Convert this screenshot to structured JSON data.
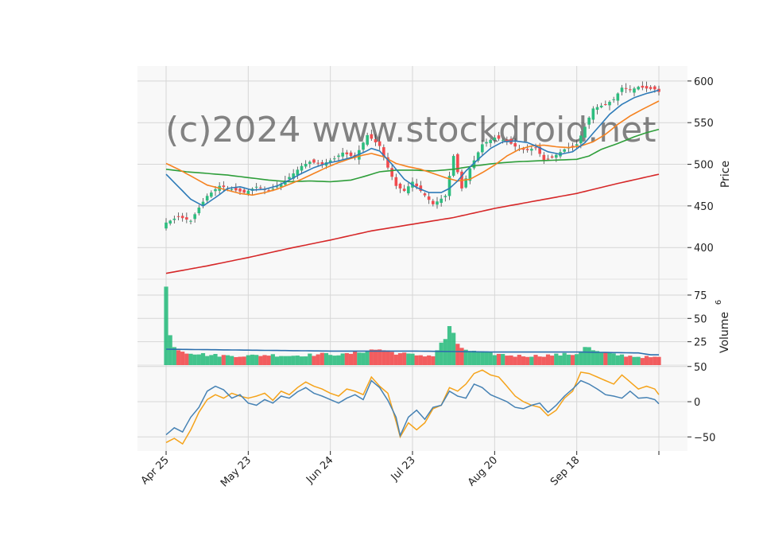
{
  "chart_data": {
    "type": "candlestick",
    "watermark": "(c)2024 www.stockdroid.net",
    "colors": {
      "up": "#2dbd7f",
      "down": "#f14b4e",
      "ma_fast": "#2e7bb8",
      "ma_mid": "#f58220",
      "ma_slow": "#2e9e3a",
      "ma_long": "#d62728",
      "volume_avg": "#2c6fad",
      "osc_a": "#4682b4",
      "osc_b": "#f5a31a",
      "grid": "#d6d6d6",
      "panel_bg": "#f8f8f8"
    },
    "x_ticks": [
      {
        "label": "Apr 25",
        "index": 0
      },
      {
        "label": "May 23",
        "index": 20
      },
      {
        "label": "Jun 24",
        "index": 40
      },
      {
        "label": "Jul 23",
        "index": 60
      },
      {
        "label": "Aug 20",
        "index": 80
      },
      {
        "label": "Sep 18",
        "index": 100
      },
      {
        "label": "",
        "index": 120
      }
    ],
    "price_axis": {
      "label": "Price",
      "ticks": [
        400,
        450,
        500,
        550,
        600
      ],
      "ylim": [
        362,
        618
      ]
    },
    "volume_axis": {
      "label": "Volume",
      "exponent": "6",
      "ticks": [
        25,
        50,
        75
      ],
      "ylim": [
        0,
        92
      ]
    },
    "osc_axis": {
      "ticks": [
        -50,
        0,
        50
      ],
      "ylim": [
        -70,
        52
      ]
    },
    "price_anchors": [
      [
        0,
        430
      ],
      [
        3,
        437
      ],
      [
        6,
        432
      ],
      [
        8,
        448
      ],
      [
        10,
        462
      ],
      [
        13,
        474
      ],
      [
        16,
        470
      ],
      [
        19,
        466
      ],
      [
        22,
        473
      ],
      [
        25,
        468
      ],
      [
        28,
        476
      ],
      [
        31,
        489
      ],
      [
        33,
        498
      ],
      [
        35,
        503
      ],
      [
        38,
        500
      ],
      [
        41,
        507
      ],
      [
        43,
        514
      ],
      [
        46,
        508
      ],
      [
        49,
        535
      ],
      [
        52,
        522
      ],
      [
        54,
        496
      ],
      [
        56,
        474
      ],
      [
        58,
        468
      ],
      [
        60,
        479
      ],
      [
        62,
        468
      ],
      [
        65,
        452
      ],
      [
        68,
        462
      ],
      [
        70,
        510
      ],
      [
        72,
        471
      ],
      [
        74,
        495
      ],
      [
        77,
        524
      ],
      [
        80,
        532
      ],
      [
        83,
        528
      ],
      [
        86,
        518
      ],
      [
        88,
        517
      ],
      [
        90,
        520
      ],
      [
        92,
        505
      ],
      [
        94,
        508
      ],
      [
        97,
        518
      ],
      [
        100,
        524
      ],
      [
        102,
        545
      ],
      [
        104,
        567
      ],
      [
        107,
        572
      ],
      [
        109,
        578
      ],
      [
        111,
        592
      ],
      [
        113,
        589
      ],
      [
        115,
        593
      ],
      [
        117,
        591
      ],
      [
        119,
        590
      ],
      [
        120,
        587
      ]
    ],
    "volume_anchors": [
      [
        0,
        84
      ],
      [
        1,
        32
      ],
      [
        2,
        22
      ],
      [
        3,
        17
      ],
      [
        5,
        14
      ],
      [
        10,
        11
      ],
      [
        15,
        10
      ],
      [
        20,
        10
      ],
      [
        25,
        11
      ],
      [
        30,
        10
      ],
      [
        35,
        11
      ],
      [
        40,
        12
      ],
      [
        43,
        11
      ],
      [
        48,
        15
      ],
      [
        52,
        17
      ],
      [
        56,
        13
      ],
      [
        60,
        11
      ],
      [
        65,
        10
      ],
      [
        68,
        28
      ],
      [
        69,
        43
      ],
      [
        71,
        20
      ],
      [
        75,
        14
      ],
      [
        80,
        12
      ],
      [
        85,
        10
      ],
      [
        90,
        10
      ],
      [
        95,
        11
      ],
      [
        100,
        12
      ],
      [
        102,
        20
      ],
      [
        105,
        14
      ],
      [
        110,
        11
      ],
      [
        115,
        9
      ],
      [
        120,
        8
      ]
    ],
    "volume_avg_anchors": [
      [
        0,
        17
      ],
      [
        20,
        16
      ],
      [
        40,
        15
      ],
      [
        60,
        15
      ],
      [
        80,
        14
      ],
      [
        100,
        14
      ],
      [
        115,
        13
      ],
      [
        118,
        11
      ],
      [
        120,
        11
      ]
    ],
    "ma_fast_anchors": [
      [
        0,
        488
      ],
      [
        3,
        473
      ],
      [
        6,
        458
      ],
      [
        9,
        450
      ],
      [
        12,
        460
      ],
      [
        15,
        471
      ],
      [
        18,
        473
      ],
      [
        21,
        469
      ],
      [
        24,
        470
      ],
      [
        27,
        474
      ],
      [
        30,
        481
      ],
      [
        33,
        489
      ],
      [
        36,
        496
      ],
      [
        39,
        501
      ],
      [
        42,
        504
      ],
      [
        45,
        508
      ],
      [
        48,
        514
      ],
      [
        50,
        519
      ],
      [
        52,
        516
      ],
      [
        55,
        500
      ],
      [
        58,
        482
      ],
      [
        61,
        472
      ],
      [
        64,
        466
      ],
      [
        67,
        466
      ],
      [
        69,
        471
      ],
      [
        71,
        480
      ],
      [
        73,
        492
      ],
      [
        76,
        506
      ],
      [
        79,
        519
      ],
      [
        82,
        527
      ],
      [
        85,
        528
      ],
      [
        88,
        526
      ],
      [
        90,
        522
      ],
      [
        93,
        515
      ],
      [
        96,
        512
      ],
      [
        99,
        515
      ],
      [
        102,
        526
      ],
      [
        105,
        543
      ],
      [
        108,
        560
      ],
      [
        111,
        572
      ],
      [
        114,
        580
      ],
      [
        117,
        585
      ],
      [
        120,
        589
      ]
    ],
    "ma_mid_anchors": [
      [
        0,
        501
      ],
      [
        3,
        494
      ],
      [
        6,
        486
      ],
      [
        10,
        475
      ],
      [
        14,
        470
      ],
      [
        18,
        465
      ],
      [
        21,
        463
      ],
      [
        24,
        466
      ],
      [
        27,
        470
      ],
      [
        30,
        476
      ],
      [
        33,
        482
      ],
      [
        36,
        489
      ],
      [
        39,
        496
      ],
      [
        42,
        502
      ],
      [
        45,
        507
      ],
      [
        48,
        511
      ],
      [
        50,
        513
      ],
      [
        53,
        509
      ],
      [
        56,
        501
      ],
      [
        59,
        497
      ],
      [
        62,
        494
      ],
      [
        65,
        489
      ],
      [
        68,
        484
      ],
      [
        71,
        480
      ],
      [
        74,
        482
      ],
      [
        77,
        490
      ],
      [
        80,
        499
      ],
      [
        83,
        510
      ],
      [
        86,
        518
      ],
      [
        89,
        522
      ],
      [
        92,
        523
      ],
      [
        95,
        521
      ],
      [
        98,
        520
      ],
      [
        101,
        522
      ],
      [
        104,
        527
      ],
      [
        107,
        536
      ],
      [
        110,
        548
      ],
      [
        113,
        558
      ],
      [
        116,
        566
      ],
      [
        118,
        571
      ],
      [
        120,
        576
      ]
    ],
    "ma_slow_anchors": [
      [
        0,
        494
      ],
      [
        5,
        491
      ],
      [
        10,
        489
      ],
      [
        15,
        487
      ],
      [
        20,
        484
      ],
      [
        25,
        481
      ],
      [
        30,
        479
      ],
      [
        35,
        480
      ],
      [
        40,
        479
      ],
      [
        45,
        481
      ],
      [
        48,
        485
      ],
      [
        52,
        491
      ],
      [
        56,
        493
      ],
      [
        60,
        493
      ],
      [
        65,
        492
      ],
      [
        70,
        494
      ],
      [
        75,
        498
      ],
      [
        80,
        501
      ],
      [
        85,
        503
      ],
      [
        90,
        504
      ],
      [
        95,
        505
      ],
      [
        100,
        506
      ],
      [
        103,
        510
      ],
      [
        106,
        518
      ],
      [
        110,
        525
      ],
      [
        114,
        533
      ],
      [
        117,
        538
      ],
      [
        120,
        542
      ]
    ],
    "ma_long_anchors": [
      [
        0,
        369
      ],
      [
        10,
        378
      ],
      [
        20,
        388
      ],
      [
        30,
        399
      ],
      [
        40,
        409
      ],
      [
        50,
        420
      ],
      [
        60,
        428
      ],
      [
        70,
        436
      ],
      [
        80,
        447
      ],
      [
        90,
        456
      ],
      [
        100,
        465
      ],
      [
        110,
        477
      ],
      [
        120,
        488
      ]
    ],
    "osc_a_anchors": [
      [
        0,
        -47
      ],
      [
        2,
        -37
      ],
      [
        4,
        -43
      ],
      [
        6,
        -22
      ],
      [
        8,
        -8
      ],
      [
        10,
        15
      ],
      [
        12,
        22
      ],
      [
        14,
        17
      ],
      [
        16,
        5
      ],
      [
        18,
        10
      ],
      [
        20,
        -2
      ],
      [
        22,
        -5
      ],
      [
        24,
        3
      ],
      [
        26,
        -2
      ],
      [
        28,
        8
      ],
      [
        30,
        5
      ],
      [
        32,
        14
      ],
      [
        34,
        20
      ],
      [
        36,
        12
      ],
      [
        38,
        8
      ],
      [
        40,
        3
      ],
      [
        42,
        -2
      ],
      [
        44,
        5
      ],
      [
        46,
        10
      ],
      [
        48,
        3
      ],
      [
        50,
        30
      ],
      [
        52,
        20
      ],
      [
        54,
        2
      ],
      [
        56,
        -22
      ],
      [
        57,
        -48
      ],
      [
        59,
        -22
      ],
      [
        61,
        -12
      ],
      [
        63,
        -25
      ],
      [
        65,
        -8
      ],
      [
        67,
        -5
      ],
      [
        69,
        15
      ],
      [
        71,
        8
      ],
      [
        73,
        5
      ],
      [
        75,
        25
      ],
      [
        77,
        20
      ],
      [
        79,
        10
      ],
      [
        81,
        5
      ],
      [
        83,
        0
      ],
      [
        85,
        -8
      ],
      [
        87,
        -10
      ],
      [
        89,
        -5
      ],
      [
        91,
        -2
      ],
      [
        93,
        -15
      ],
      [
        95,
        -5
      ],
      [
        97,
        8
      ],
      [
        99,
        18
      ],
      [
        101,
        30
      ],
      [
        103,
        25
      ],
      [
        105,
        18
      ],
      [
        107,
        10
      ],
      [
        109,
        8
      ],
      [
        111,
        5
      ],
      [
        113,
        15
      ],
      [
        115,
        5
      ],
      [
        117,
        6
      ],
      [
        119,
        3
      ],
      [
        120,
        -3
      ]
    ],
    "osc_b_anchors": [
      [
        0,
        -58
      ],
      [
        2,
        -52
      ],
      [
        4,
        -60
      ],
      [
        6,
        -40
      ],
      [
        8,
        -15
      ],
      [
        10,
        3
      ],
      [
        12,
        10
      ],
      [
        14,
        5
      ],
      [
        16,
        12
      ],
      [
        18,
        8
      ],
      [
        20,
        5
      ],
      [
        22,
        8
      ],
      [
        24,
        12
      ],
      [
        26,
        2
      ],
      [
        28,
        15
      ],
      [
        30,
        10
      ],
      [
        32,
        20
      ],
      [
        34,
        28
      ],
      [
        36,
        22
      ],
      [
        38,
        18
      ],
      [
        40,
        12
      ],
      [
        42,
        8
      ],
      [
        44,
        18
      ],
      [
        46,
        15
      ],
      [
        48,
        10
      ],
      [
        50,
        35
      ],
      [
        52,
        22
      ],
      [
        54,
        12
      ],
      [
        56,
        -28
      ],
      [
        57,
        -50
      ],
      [
        59,
        -30
      ],
      [
        61,
        -40
      ],
      [
        63,
        -30
      ],
      [
        65,
        -10
      ],
      [
        67,
        -5
      ],
      [
        69,
        20
      ],
      [
        71,
        15
      ],
      [
        73,
        25
      ],
      [
        75,
        40
      ],
      [
        77,
        45
      ],
      [
        79,
        38
      ],
      [
        81,
        35
      ],
      [
        83,
        22
      ],
      [
        85,
        8
      ],
      [
        87,
        0
      ],
      [
        89,
        -5
      ],
      [
        91,
        -8
      ],
      [
        93,
        -20
      ],
      [
        95,
        -12
      ],
      [
        97,
        5
      ],
      [
        99,
        15
      ],
      [
        101,
        42
      ],
      [
        103,
        40
      ],
      [
        105,
        35
      ],
      [
        107,
        30
      ],
      [
        109,
        25
      ],
      [
        111,
        38
      ],
      [
        113,
        28
      ],
      [
        115,
        18
      ],
      [
        117,
        22
      ],
      [
        119,
        18
      ],
      [
        120,
        10
      ]
    ]
  }
}
